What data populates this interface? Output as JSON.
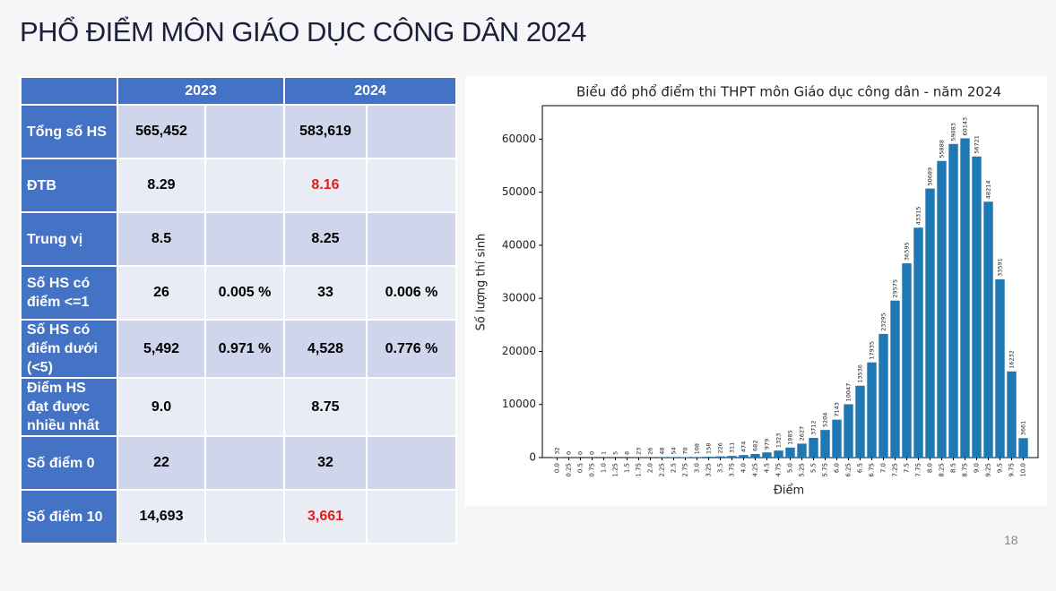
{
  "title": "PHỔ ĐIỂM MÔN GIÁO DỤC CÔNG DÂN 2024",
  "table": {
    "header": [
      "2023",
      "2024"
    ],
    "rows": [
      [
        "Tổng số HS",
        "565,452",
        null,
        "583,619",
        null
      ],
      [
        "ĐTB",
        "8.29",
        null,
        "8.16",
        null
      ],
      [
        "Trung vị",
        "8.5",
        null,
        "8.25",
        null
      ],
      [
        "Số HS có điểm <=1",
        "26",
        "0.005 %",
        "33",
        "0.006 %"
      ],
      [
        "Số HS có điểm dưới (<5)",
        "5,492",
        "0.971 %",
        "4,528",
        "0.776 %"
      ],
      [
        "Điểm HS đạt được nhiều nhất",
        "9.0",
        null,
        "8.75",
        null
      ],
      [
        "Số điểm 0",
        "22",
        null,
        "32",
        null
      ],
      [
        "Số điểm 10",
        "14,693",
        null,
        "3,661",
        null
      ]
    ]
  },
  "chart_data": {
    "type": "bar",
    "title": "Biểu đồ phổ điểm thi THPT môn Giáo dục công dân - năm 2024",
    "x_label": "Điểm",
    "y_label": "Số lượng thí sinh",
    "categories": [
      "0.0",
      "0.25",
      "0.5",
      "0.75",
      "1.0",
      "1.25",
      "1.5",
      "1.75",
      "2.0",
      "2.25",
      "2.5",
      "2.75",
      "3.0",
      "3.25",
      "3.5",
      "3.75",
      "4.0",
      "4.25",
      "4.5",
      "4.75",
      "5.0",
      "5.25",
      "5.5",
      "5.75",
      "6.0",
      "6.25",
      "6.5",
      "6.75",
      "7.0",
      "7.25",
      "7.5",
      "7.75",
      "8.0",
      "8.25",
      "8.5",
      "8.75",
      "9.0",
      "9.25",
      "9.5",
      "9.75",
      "10.0"
    ],
    "values": [
      32,
      0,
      0,
      0,
      1,
      5,
      8,
      23,
      26,
      48,
      54,
      70,
      108,
      158,
      226,
      311,
      474,
      682,
      979,
      1323,
      1885,
      2627,
      3712,
      5204,
      7143,
      10047,
      13536,
      17935,
      23295,
      29575,
      36595,
      43315,
      50689,
      55888,
      59083,
      60143,
      56721,
      48214,
      33591,
      16232,
      3661
    ],
    "color": "#1f77b4",
    "ylim": [
      0,
      66300
    ],
    "yticks": [
      0,
      10000,
      20000,
      30000,
      40000,
      50000,
      60000
    ]
  },
  "page_number": "18"
}
